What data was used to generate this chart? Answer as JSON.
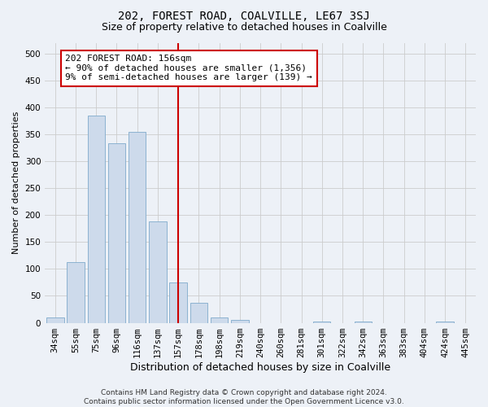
{
  "title_line1": "202, FOREST ROAD, COALVILLE, LE67 3SJ",
  "title_line2": "Size of property relative to detached houses in Coalville",
  "xlabel": "Distribution of detached houses by size in Coalville",
  "ylabel": "Number of detached properties",
  "categories": [
    "34sqm",
    "55sqm",
    "75sqm",
    "96sqm",
    "116sqm",
    "137sqm",
    "157sqm",
    "178sqm",
    "198sqm",
    "219sqm",
    "240sqm",
    "260sqm",
    "281sqm",
    "301sqm",
    "322sqm",
    "342sqm",
    "363sqm",
    "383sqm",
    "404sqm",
    "424sqm",
    "445sqm"
  ],
  "values": [
    10,
    113,
    385,
    333,
    355,
    188,
    75,
    37,
    10,
    6,
    0,
    0,
    0,
    2,
    0,
    2,
    0,
    0,
    0,
    2,
    0
  ],
  "bar_color": "#cddaeb",
  "bar_edge_color": "#7faacb",
  "vline_x_index": 6,
  "vline_color": "#cc0000",
  "annotation_text": "202 FOREST ROAD: 156sqm\n← 90% of detached houses are smaller (1,356)\n9% of semi-detached houses are larger (139) →",
  "annotation_box_color": "#ffffff",
  "annotation_box_edge": "#cc0000",
  "ylim": [
    0,
    520
  ],
  "yticks": [
    0,
    50,
    100,
    150,
    200,
    250,
    300,
    350,
    400,
    450,
    500
  ],
  "grid_color": "#cccccc",
  "background_color": "#edf1f7",
  "plot_bg_color": "#edf1f7",
  "footnote": "Contains HM Land Registry data © Crown copyright and database right 2024.\nContains public sector information licensed under the Open Government Licence v3.0.",
  "title1_fontsize": 10,
  "title2_fontsize": 9,
  "xlabel_fontsize": 9,
  "ylabel_fontsize": 8,
  "tick_fontsize": 7.5,
  "annot_fontsize": 8,
  "footnote_fontsize": 6.5
}
